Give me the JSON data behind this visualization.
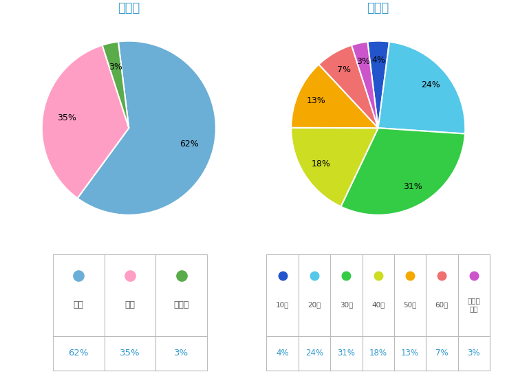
{
  "gender_labels": [
    "男性",
    "女性",
    "その他"
  ],
  "gender_values": [
    62,
    35,
    3
  ],
  "gender_colors": [
    "#6baed6",
    "#ff9ec4",
    "#5aab4a"
  ],
  "gender_startangle": 97,
  "gender_title": "男女比",
  "age_labels": [
    "10代",
    "20代",
    "30代",
    "40代",
    "50代",
    "60代",
    "その他\n年代"
  ],
  "age_values": [
    4,
    24,
    31,
    18,
    13,
    7,
    3
  ],
  "age_colors": [
    "#2255cc",
    "#54c8e8",
    "#33cc44",
    "#ccdd22",
    "#f5a800",
    "#f07070",
    "#cc55cc"
  ],
  "age_startangle": 97,
  "age_title": "年代比",
  "background_color": "#ffffff",
  "title_color": "#3399cc",
  "pct_fontsize": 9,
  "title_fontsize": 13,
  "legend_text_color": "#555555",
  "legend_pct_color": "#3399cc"
}
